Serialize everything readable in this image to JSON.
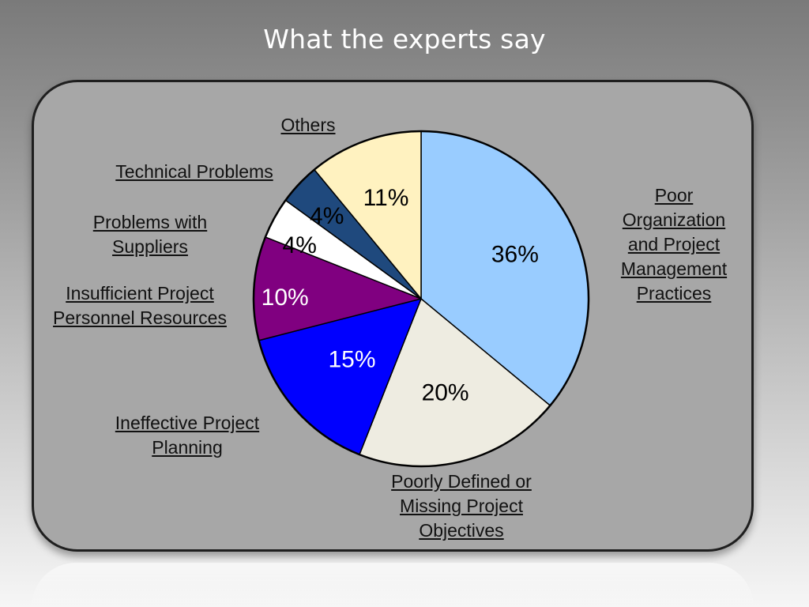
{
  "slide": {
    "title": "What the experts say"
  },
  "chart_data": {
    "type": "pie",
    "title": "",
    "slices": [
      {
        "label": "Poor Organization and Project Management Practices",
        "value": 36,
        "value_label": "36%",
        "color": "#99ccff",
        "text_color": "#000000"
      },
      {
        "label": "Poorly Defined or Missing Project Objectives",
        "value": 20,
        "value_label": "20%",
        "color": "#eeece1",
        "text_color": "#000000"
      },
      {
        "label": "Ineffective Project Planning",
        "value": 15,
        "value_label": "15%",
        "color": "#0000ff",
        "text_color": "#ffffff"
      },
      {
        "label": "Insufficient Project Personnel Resources",
        "value": 10,
        "value_label": "10%",
        "color": "#800080",
        "text_color": "#ffffff"
      },
      {
        "label": "Problems with Suppliers",
        "value": 4,
        "value_label": "4%",
        "color": "#ffffff",
        "text_color": "#000000"
      },
      {
        "label": "Technical Problems",
        "value": 4,
        "value_label": "4%",
        "color": "#1f497d",
        "text_color": "#000000"
      },
      {
        "label": "Others",
        "value": 11,
        "value_label": "11%",
        "color": "#fff2c0",
        "text_color": "#000000"
      }
    ],
    "labels": {
      "poor_org": "Poor\nOrganization\nand Project\nManagement\nPractices",
      "poorly_defined": "Poorly Defined or\nMissing Project\nObjectives",
      "ineffective": "Ineffective Project\nPlanning",
      "insufficient": "Insufficient Project\nPersonnel Resources",
      "suppliers": "Problems with\nSuppliers",
      "technical": "Technical Problems",
      "others": "Others"
    },
    "legend": "none"
  }
}
